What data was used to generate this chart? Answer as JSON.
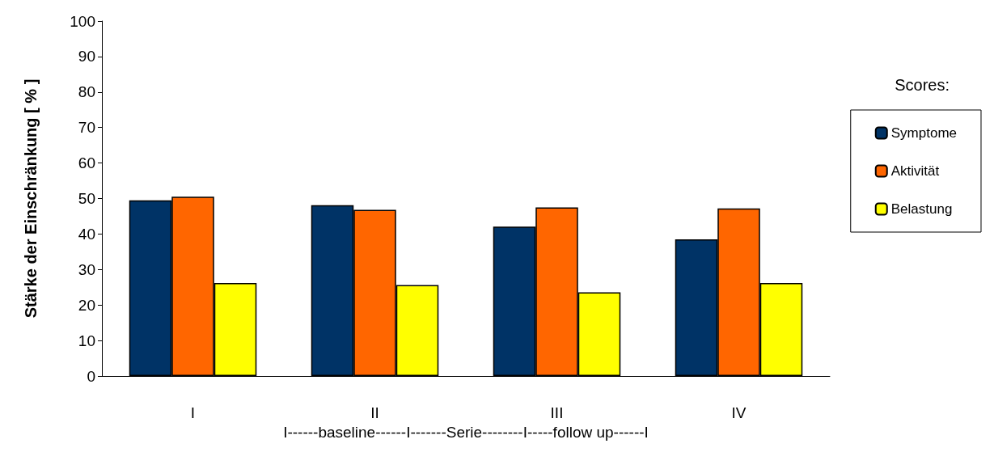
{
  "chart_data": {
    "type": "bar",
    "categories": [
      "I",
      "II",
      "III",
      "IV"
    ],
    "xlabel": "I------baseline------I-------Serie--------I-----follow up------I",
    "ylabel": "Stärke der Einschränkung [ % ]",
    "legend_title": "Scores:",
    "series": [
      {
        "name": "Symptome",
        "color": "#003366",
        "values": [
          49.5,
          48.1,
          42.1,
          38.5
        ]
      },
      {
        "name": "Aktivität",
        "color": "#ff6600",
        "values": [
          50.5,
          46.8,
          47.5,
          47.2
        ]
      },
      {
        "name": "Belastung",
        "color": "#ffff00",
        "values": [
          26.2,
          25.6,
          23.6,
          26.2
        ]
      }
    ],
    "ylim": [
      0,
      100
    ],
    "yticks": [
      0,
      10,
      20,
      30,
      40,
      50,
      60,
      70,
      80,
      90,
      100
    ],
    "grid": false,
    "legend": "right"
  }
}
